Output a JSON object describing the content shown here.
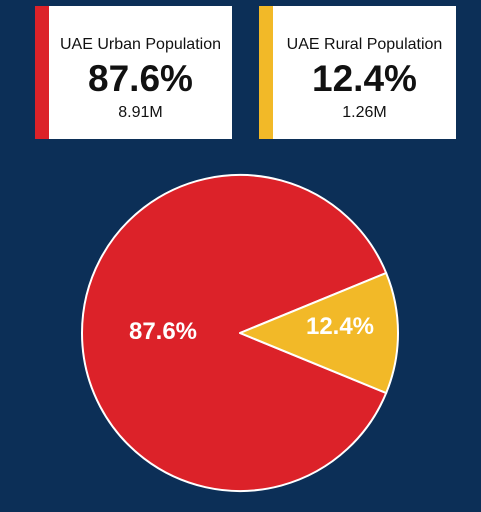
{
  "cards": [
    {
      "title": "UAE Urban Population",
      "percent": "87.6%",
      "count": "8.91M",
      "color": "#dc2229"
    },
    {
      "title": "UAE Rural Population",
      "percent": "12.4%",
      "count": "1.26M",
      "color": "#f2b928"
    }
  ],
  "colors": {
    "background": "#0c2f57",
    "card_background": "#ffffff"
  },
  "chart_data": {
    "type": "pie",
    "labels": [
      "87.6%",
      "12.4%"
    ],
    "values": [
      87.6,
      12.4
    ],
    "colors": [
      "#dc2229",
      "#f2b928"
    ]
  }
}
